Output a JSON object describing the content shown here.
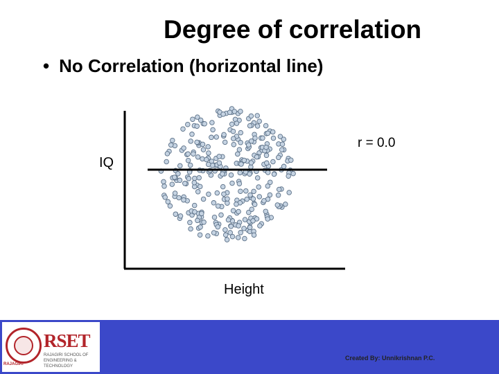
{
  "slide": {
    "title": "Degree of correlation",
    "bullet_symbol": "•",
    "bullet_text": "No Correlation (horizontal line)"
  },
  "chart_data": {
    "type": "scatter",
    "xlabel": "Height",
    "ylabel": "IQ",
    "annotation": "r = 0.0",
    "trend": "horizontal",
    "point_color": "#c5d3e2",
    "point_edge_color": "#5a6f86"
  },
  "footer": {
    "brand": "RSET",
    "brand_subtitle": "RAJAGIRI SCHOOL OF ENGINEERING & TECHNOLOGY",
    "seal_text": "RAJAGIRI",
    "credit": "Created By: Unnikrishnan P.C.",
    "background_color": "#3b48c9",
    "brand_color": "#b2242a"
  }
}
